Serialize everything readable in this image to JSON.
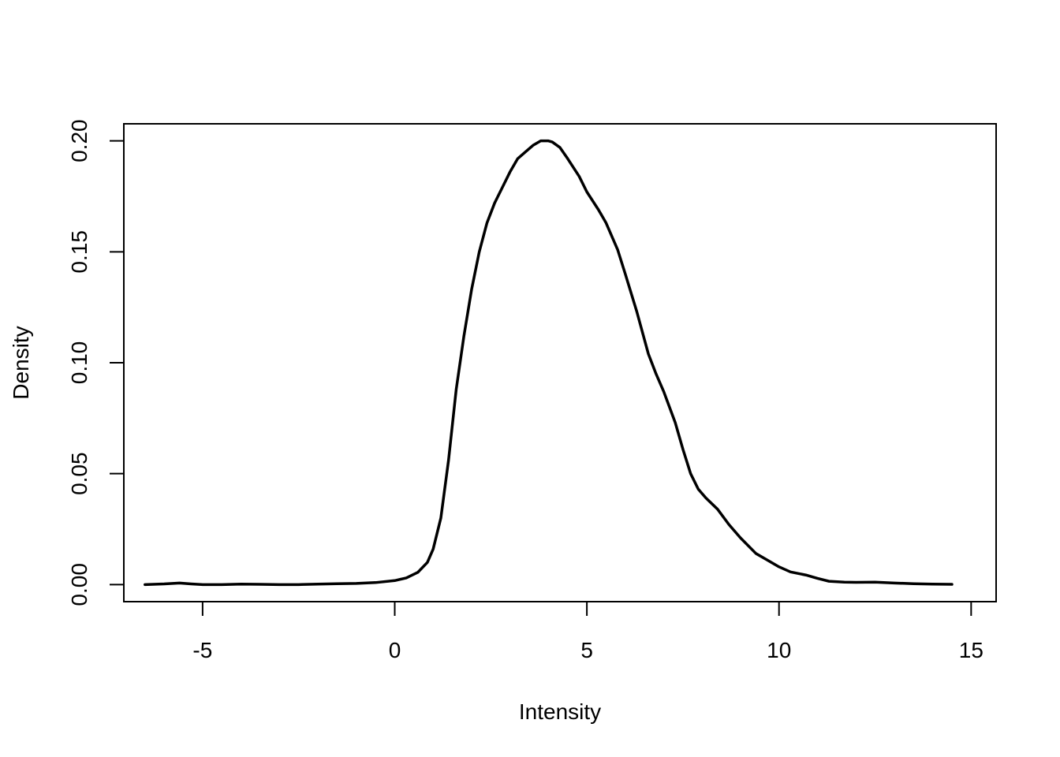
{
  "chart_data": {
    "type": "line",
    "title": "",
    "xlabel": "Intensity",
    "ylabel": "Density",
    "xlim": [
      -7.05,
      15.65
    ],
    "ylim": [
      -0.0077,
      0.2077
    ],
    "x_ticks": [
      -5,
      0,
      5,
      10,
      15
    ],
    "x_tick_labels": [
      "-5",
      "0",
      "5",
      "10",
      "15"
    ],
    "y_ticks": [
      0,
      0.05,
      0.1,
      0.15,
      0.2
    ],
    "y_tick_labels": [
      "0.00",
      "0.05",
      "0.10",
      "0.15",
      "0.20"
    ],
    "grid": false,
    "legend": "none",
    "line_color": "#000000",
    "series": [
      {
        "x": [
          -6.5,
          -6.0,
          -5.6,
          -5.3,
          -5.0,
          -4.5,
          -4.0,
          -3.5,
          -3.0,
          -2.5,
          -2.0,
          -1.5,
          -1.0,
          -0.5,
          0.0,
          0.3,
          0.6,
          0.85,
          1.0,
          1.2,
          1.4,
          1.6,
          1.8,
          2.0,
          2.2,
          2.4,
          2.6,
          2.8,
          3.0,
          3.2,
          3.4,
          3.6,
          3.8,
          4.0,
          4.1,
          4.3,
          4.5,
          4.8,
          5.0,
          5.3,
          5.5,
          5.8,
          6.0,
          6.3,
          6.6,
          6.8,
          7.0,
          7.3,
          7.5,
          7.7,
          7.9,
          8.1,
          8.4,
          8.7,
          9.0,
          9.4,
          9.7,
          10.0,
          10.3,
          10.7,
          11.0,
          11.3,
          11.7,
          12.0,
          12.5,
          13.0,
          13.5,
          14.0,
          14.5
        ],
        "y": [
          0.0,
          0.0003,
          0.0007,
          0.0003,
          0.0,
          0.0,
          0.0002,
          0.0001,
          0.0,
          0.0,
          0.0002,
          0.0004,
          0.0005,
          0.0009,
          0.0018,
          0.003,
          0.0055,
          0.01,
          0.016,
          0.03,
          0.056,
          0.088,
          0.112,
          0.133,
          0.15,
          0.163,
          0.172,
          0.179,
          0.186,
          0.192,
          0.195,
          0.198,
          0.2,
          0.2,
          0.1995,
          0.197,
          0.192,
          0.184,
          0.177,
          0.169,
          0.163,
          0.151,
          0.14,
          0.123,
          0.104,
          0.095,
          0.087,
          0.073,
          0.061,
          0.05,
          0.043,
          0.039,
          0.034,
          0.027,
          0.021,
          0.014,
          0.011,
          0.008,
          0.0057,
          0.0043,
          0.0028,
          0.0015,
          0.0011,
          0.001,
          0.0011,
          0.0007,
          0.0004,
          0.0002,
          0.0001
        ]
      }
    ]
  }
}
